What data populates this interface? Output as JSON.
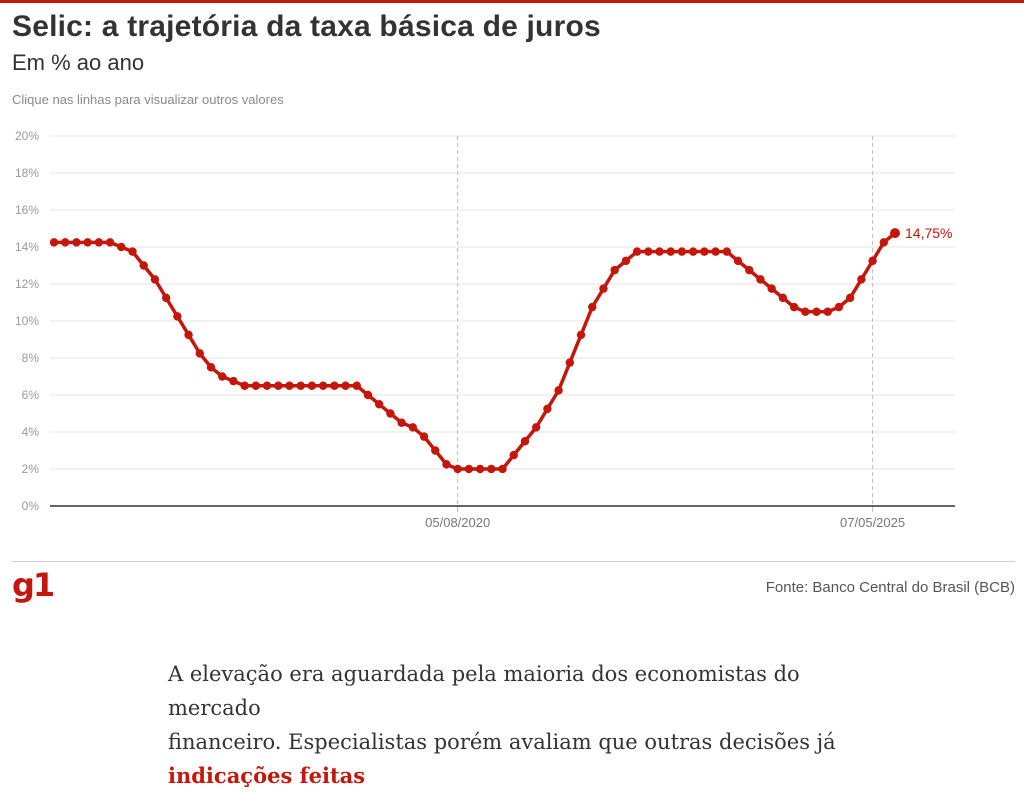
{
  "header": {
    "title": "Selic: a trajetória da taxa básica de juros",
    "subtitle": "Em % ao ano",
    "hint": "Clique nas linhas para visualizar outros valores"
  },
  "footer": {
    "logo": "g1",
    "source": "Fonte: Banco Central do Brasil (BCB)"
  },
  "article": {
    "line1": "A elevação era aguardada pela maioria dos economistas do mercado",
    "line2_text": "financeiro. Especialistas porém avaliam que outras decisões já ",
    "line2_link": "indicações feitas"
  },
  "colors": {
    "accent": "#c4170c",
    "line": "#c4170c",
    "grid": "#e6e6e6",
    "axis": "#333333"
  },
  "chart_data": {
    "type": "line",
    "title": "Selic: a trajetória da taxa básica de juros",
    "ylabel": "Em % ao ano",
    "ylim": [
      0,
      20
    ],
    "yticks": [
      0,
      2,
      4,
      6,
      8,
      10,
      12,
      14,
      16,
      18,
      20
    ],
    "ytick_labels": [
      "0%",
      "2%",
      "4%",
      "6%",
      "8%",
      "10%",
      "12%",
      "14%",
      "16%",
      "18%",
      "20%"
    ],
    "grid": true,
    "reference_lines": [
      {
        "index": 36,
        "label": "05/08/2020"
      },
      {
        "index": 73,
        "label": "07/05/2025"
      }
    ],
    "last_label": "14,75%",
    "series": [
      {
        "name": "Selic",
        "values": [
          14.25,
          14.25,
          14.25,
          14.25,
          14.25,
          14.25,
          14.0,
          13.75,
          13.0,
          12.25,
          11.25,
          10.25,
          9.25,
          8.25,
          7.5,
          7.0,
          6.75,
          6.5,
          6.5,
          6.5,
          6.5,
          6.5,
          6.5,
          6.5,
          6.5,
          6.5,
          6.5,
          6.5,
          6.0,
          5.5,
          5.0,
          4.5,
          4.25,
          3.75,
          3.0,
          2.25,
          2.0,
          2.0,
          2.0,
          2.0,
          2.0,
          2.75,
          3.5,
          4.25,
          5.25,
          6.25,
          7.75,
          9.25,
          10.75,
          11.75,
          12.75,
          13.25,
          13.75,
          13.75,
          13.75,
          13.75,
          13.75,
          13.75,
          13.75,
          13.75,
          13.75,
          13.25,
          12.75,
          12.25,
          11.75,
          11.25,
          10.75,
          10.5,
          10.5,
          10.5,
          10.75,
          11.25,
          12.25,
          13.25,
          14.25,
          14.75
        ]
      }
    ]
  }
}
